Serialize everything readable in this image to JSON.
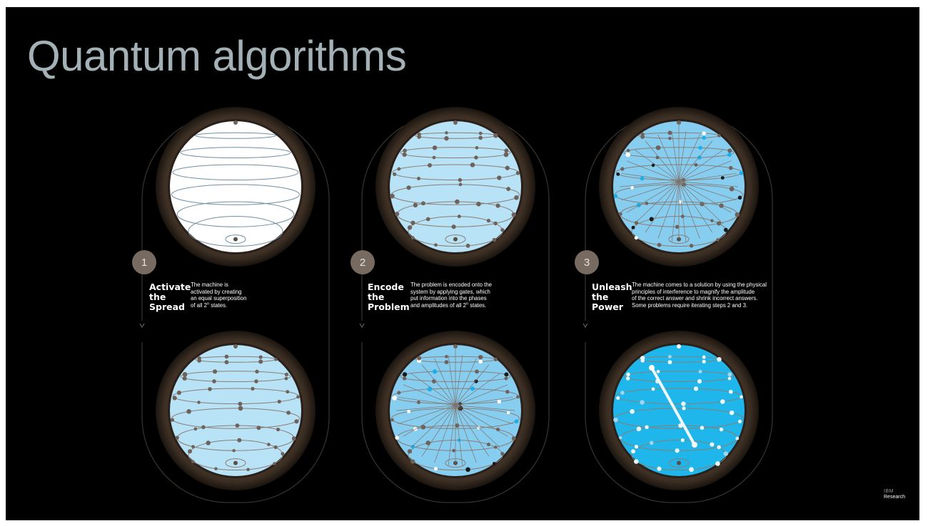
{
  "title": "Quantum algorithms",
  "colors": {
    "background": "#000000",
    "title": "#a3b0b5",
    "ring": "#3a2e24",
    "badge": "#766a61",
    "sphere_white": "#ffffff",
    "sphere_pale": "#b8e2f6",
    "sphere_mid": "#87cdf0",
    "sphere_bright": "#1fb6ec"
  },
  "steps": [
    {
      "number": "1",
      "title_lines": [
        "Activate",
        "the",
        "Spread"
      ],
      "desc_lines": [
        "The machine is",
        "activated by creating",
        "an equal superposition"
      ],
      "desc_last_prefix": "of all 2",
      "desc_last_sup": "n",
      "desc_last_suffix": " states."
    },
    {
      "number": "2",
      "title_lines": [
        "Encode",
        "the",
        "Problem"
      ],
      "desc_lines": [
        "The problem is encoded onto the",
        "system by applying gates, which",
        "put information into the phases"
      ],
      "desc_last_prefix": "and amplitudes of all 2",
      "desc_last_sup": "n",
      "desc_last_suffix": " states."
    },
    {
      "number": "3",
      "title_lines": [
        "Unleash",
        "the",
        "Power"
      ],
      "desc_lines": [
        "The machine comes to a solution by using the physical",
        "principles of interference to magnify the amplitude",
        "of the correct answer and shrink incorrect answers."
      ],
      "desc_last_prefix": "Some problems require iterating steps 2 and 3.",
      "desc_last_sup": "",
      "desc_last_suffix": ""
    }
  ],
  "spheres": [
    {
      "variant": "plain-white",
      "icon": "sphere-white-icon"
    },
    {
      "variant": "pale-dots",
      "icon": "sphere-dotted-icon"
    },
    {
      "variant": "pale-dots",
      "icon": "sphere-dotted-icon"
    },
    {
      "variant": "mid-lines",
      "icon": "sphere-interference-icon"
    },
    {
      "variant": "mid-lines",
      "icon": "sphere-interference-icon"
    },
    {
      "variant": "bright-answer",
      "icon": "sphere-solution-icon"
    }
  ],
  "brand": {
    "mark": "IBM",
    "label": "Research"
  }
}
